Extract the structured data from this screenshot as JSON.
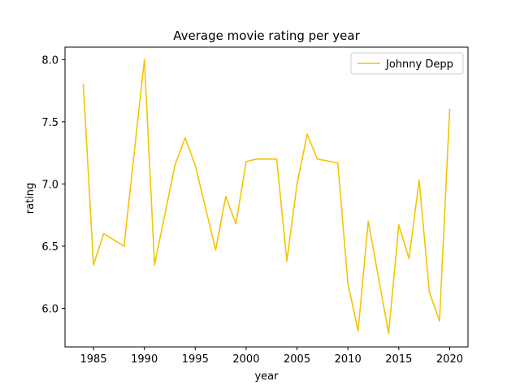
{
  "chart_data": {
    "type": "line",
    "title": "Average movie rating per year",
    "xlabel": "year",
    "ylabel": "rating",
    "xlim": [
      1982.2,
      2021.8
    ],
    "ylim": [
      5.69,
      8.1
    ],
    "xticks": [
      1985,
      1990,
      1995,
      2000,
      2005,
      2010,
      2015,
      2020
    ],
    "yticks": [
      6.0,
      6.5,
      7.0,
      7.5,
      8.0
    ],
    "xtick_labels": [
      "1985",
      "1990",
      "1995",
      "2000",
      "2005",
      "2010",
      "2015",
      "2020"
    ],
    "ytick_labels": [
      "6.0",
      "6.5",
      "7.0",
      "7.5",
      "8.0"
    ],
    "legend_position": "top-right",
    "grid": false,
    "series": [
      {
        "name": "Johnny Depp",
        "color": "#f5c400",
        "x": [
          1984,
          1985,
          1986,
          1988,
          1990,
          1991,
          1993,
          1994,
          1995,
          1997,
          1998,
          1999,
          2000,
          2001,
          2002,
          2003,
          2004,
          2005,
          2006,
          2007,
          2009,
          2010,
          2011,
          2012,
          2014,
          2015,
          2016,
          2017,
          2018,
          2019,
          2020
        ],
        "values": [
          7.8,
          6.35,
          6.6,
          6.5,
          8.0,
          6.35,
          7.15,
          7.37,
          7.15,
          6.47,
          6.9,
          6.68,
          7.18,
          7.2,
          7.2,
          7.2,
          6.38,
          7.0,
          7.4,
          7.2,
          7.17,
          6.2,
          5.82,
          6.7,
          5.8,
          6.67,
          6.4,
          7.03,
          6.13,
          5.9,
          7.6
        ]
      }
    ]
  }
}
